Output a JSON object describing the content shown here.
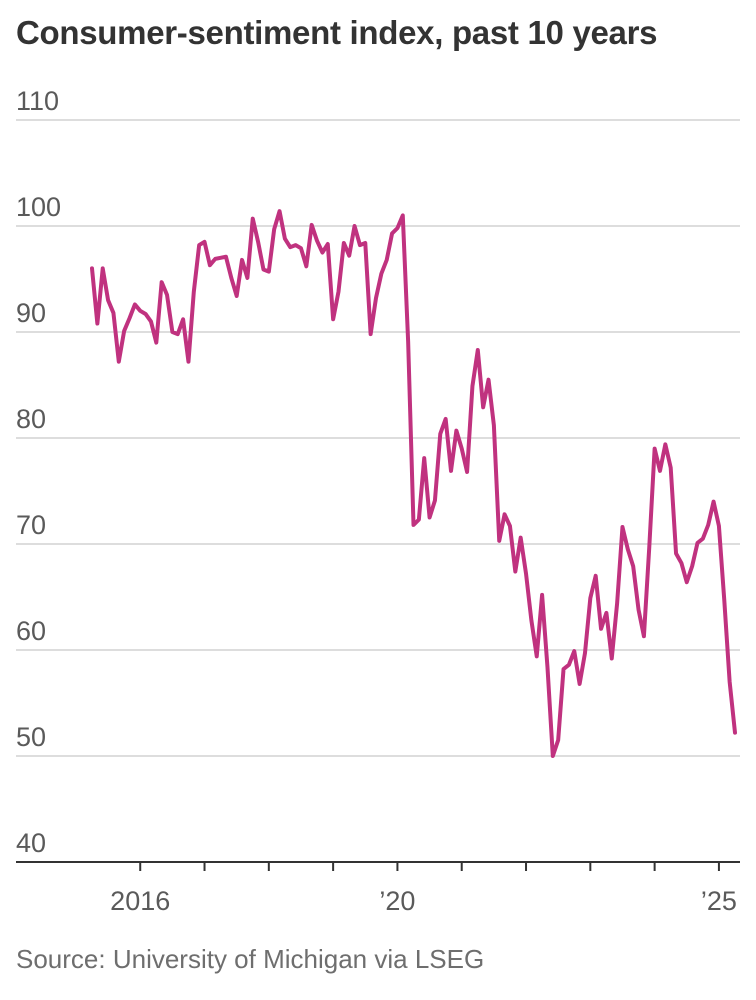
{
  "title": "Consumer-sentiment index, past 10 years",
  "source": "Source: University of Michigan via LSEG",
  "colors": {
    "line": "#c0327f",
    "grid": "#dddddd",
    "axis": "#333333"
  },
  "chart_data": {
    "type": "line",
    "title": "Consumer-sentiment index, past 10 years",
    "xlabel": "",
    "ylabel": "",
    "ylim": [
      40,
      110
    ],
    "yticks": [
      40,
      50,
      60,
      70,
      80,
      90,
      100,
      110
    ],
    "ytick_labels": [
      "40",
      "50",
      "60",
      "70",
      "80",
      "90",
      "100",
      "110"
    ],
    "xlim": [
      "2015-01",
      "2025-04"
    ],
    "xticks": [
      "2016-01",
      "2017-01",
      "2018-01",
      "2019-01",
      "2020-01",
      "2021-01",
      "2022-01",
      "2023-01",
      "2024-01",
      "2025-01"
    ],
    "x_labels": [
      {
        "x": "2016-01",
        "label": "2016"
      },
      {
        "x": "2020-01",
        "label": "’20"
      },
      {
        "x": "2025-01",
        "label": "’25"
      }
    ],
    "grid": true,
    "series": [
      {
        "x": [
          "2015-04",
          "2015-05",
          "2015-06",
          "2015-07",
          "2015-08",
          "2015-09",
          "2015-10",
          "2015-11",
          "2015-12",
          "2016-01",
          "2016-02",
          "2016-03",
          "2016-04",
          "2016-05",
          "2016-06",
          "2016-07",
          "2016-08",
          "2016-09",
          "2016-10",
          "2016-11",
          "2016-12",
          "2017-01",
          "2017-02",
          "2017-03",
          "2017-04",
          "2017-05",
          "2017-06",
          "2017-07",
          "2017-08",
          "2017-09",
          "2017-10",
          "2017-11",
          "2017-12",
          "2018-01",
          "2018-02",
          "2018-03",
          "2018-04",
          "2018-05",
          "2018-06",
          "2018-07",
          "2018-08",
          "2018-09",
          "2018-10",
          "2018-11",
          "2018-12",
          "2019-01",
          "2019-02",
          "2019-03",
          "2019-04",
          "2019-05",
          "2019-06",
          "2019-07",
          "2019-08",
          "2019-09",
          "2019-10",
          "2019-11",
          "2019-12",
          "2020-01",
          "2020-02",
          "2020-03",
          "2020-04",
          "2020-05",
          "2020-06",
          "2020-07",
          "2020-08",
          "2020-09",
          "2020-10",
          "2020-11",
          "2020-12",
          "2021-01",
          "2021-02",
          "2021-03",
          "2021-04",
          "2021-05",
          "2021-06",
          "2021-07",
          "2021-08",
          "2021-09",
          "2021-10",
          "2021-11",
          "2021-12",
          "2022-01",
          "2022-02",
          "2022-03",
          "2022-04",
          "2022-05",
          "2022-06",
          "2022-07",
          "2022-08",
          "2022-09",
          "2022-10",
          "2022-11",
          "2022-12",
          "2023-01",
          "2023-02",
          "2023-03",
          "2023-04",
          "2023-05",
          "2023-06",
          "2023-07",
          "2023-08",
          "2023-09",
          "2023-10",
          "2023-11",
          "2023-12",
          "2024-01",
          "2024-02",
          "2024-03",
          "2024-04",
          "2024-05",
          "2024-06",
          "2024-07",
          "2024-08",
          "2024-09",
          "2024-10",
          "2024-11",
          "2024-12",
          "2025-01",
          "2025-02",
          "2025-03",
          "2025-04"
        ],
        "values": [
          96.0,
          90.8,
          96.0,
          93.0,
          91.8,
          87.2,
          90.1,
          91.3,
          92.6,
          92.0,
          91.7,
          91.0,
          89.0,
          94.7,
          93.5,
          90.0,
          89.8,
          91.2,
          87.2,
          93.8,
          98.2,
          98.5,
          96.3,
          96.9,
          97.0,
          97.1,
          95.1,
          93.4,
          96.8,
          95.1,
          100.7,
          98.5,
          95.9,
          95.7,
          99.7,
          101.4,
          98.8,
          98.0,
          98.2,
          97.9,
          96.2,
          100.1,
          98.6,
          97.5,
          98.3,
          91.2,
          93.8,
          98.4,
          97.2,
          100.0,
          98.2,
          98.4,
          89.8,
          93.2,
          95.5,
          96.8,
          99.3,
          99.8,
          101.0,
          89.1,
          71.8,
          72.3,
          78.1,
          72.5,
          74.1,
          80.4,
          81.8,
          76.9,
          80.7,
          79.0,
          76.8,
          84.9,
          88.3,
          82.9,
          85.5,
          81.2,
          70.3,
          72.8,
          71.7,
          67.4,
          70.6,
          67.2,
          62.8,
          59.4,
          65.2,
          58.4,
          50.0,
          51.5,
          58.2,
          58.6,
          59.9,
          56.8,
          59.7,
          64.9,
          67.0,
          62.0,
          63.5,
          59.2,
          64.4,
          71.6,
          69.5,
          67.9,
          63.8,
          61.3,
          69.7,
          79.0,
          76.9,
          79.4,
          77.2,
          69.1,
          68.2,
          66.4,
          67.9,
          70.1,
          70.5,
          71.8,
          74.0,
          71.7,
          64.7,
          57.0,
          52.2
        ]
      }
    ]
  }
}
